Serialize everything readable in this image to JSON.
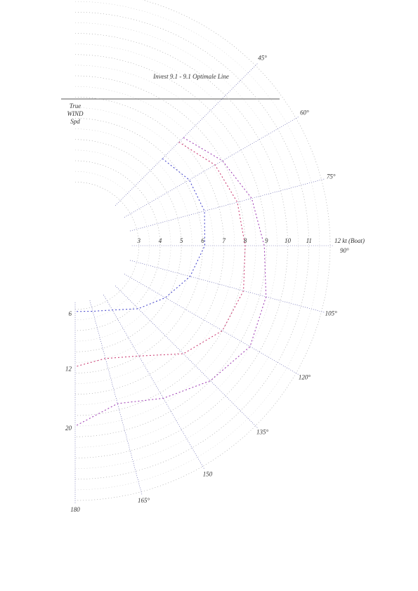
{
  "chart_data": {
    "type": "polar",
    "title": "Invest 9.1 - 9.1 Optimale Line",
    "legend_title": [
      "True",
      "WIND",
      "Spd"
    ],
    "x": [
      45,
      60,
      75,
      90,
      105,
      120,
      135,
      150,
      165,
      180
    ],
    "xticks": [
      {
        "value": 45,
        "label": "45°"
      },
      {
        "value": 60,
        "label": "60°"
      },
      {
        "value": 75,
        "label": "75°"
      },
      {
        "value": 90,
        "label": "90°"
      },
      {
        "value": 105,
        "label": "105°"
      },
      {
        "value": 120,
        "label": "120°"
      },
      {
        "value": 135,
        "label": "135°"
      },
      150,
      {
        "value": 165,
        "label": "165°"
      },
      180
    ],
    "ylim": [
      0,
      12
    ],
    "yticks": [
      3,
      4,
      5,
      6,
      7,
      8,
      9,
      10,
      11,
      {
        "value": 12,
        "label": "12 kt (Boat)"
      }
    ],
    "series": [
      {
        "name": "6",
        "color": "#3a3ac8",
        "values": [
          5.8,
          6.2,
          6.3,
          6.1,
          5.6,
          4.9,
          4.2,
          3.5,
          3.2,
          3.1
        ]
      },
      {
        "name": "12",
        "color": "#c8306a",
        "values": [
          6.9,
          7.6,
          7.9,
          8.0,
          8.2,
          8.0,
          7.2,
          6.0,
          5.5,
          5.7
        ]
      },
      {
        "name": "20",
        "color": "#9a34b0",
        "values": [
          7.2,
          8.0,
          8.6,
          8.9,
          9.3,
          9.5,
          9.0,
          8.3,
          7.7,
          8.5
        ]
      }
    ]
  }
}
